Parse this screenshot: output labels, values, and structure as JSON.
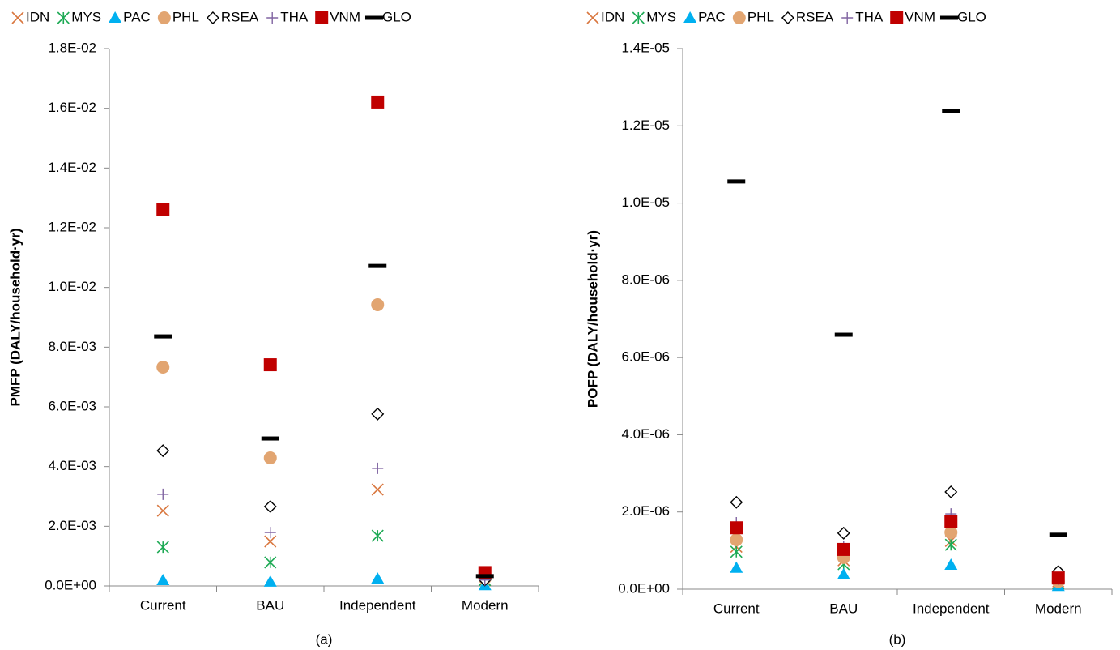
{
  "chart_data": [
    {
      "type": "scatter",
      "caption": "(a)",
      "y_label": "PMFP (DALY/household·yr)",
      "categories": [
        "Current",
        "BAU",
        "Independent",
        "Modern"
      ],
      "ylim": [
        0,
        0.018
      ],
      "yticks": [
        {
          "value": 0,
          "label": "0.0E+00"
        },
        {
          "value": 0.002,
          "label": "2.0E-03"
        },
        {
          "value": 0.004,
          "label": "4.0E-03"
        },
        {
          "value": 0.006,
          "label": "6.0E-03"
        },
        {
          "value": 0.008,
          "label": "8.0E-03"
        },
        {
          "value": 0.01,
          "label": "1.0E-02"
        },
        {
          "value": 0.012,
          "label": "1.2E-02"
        },
        {
          "value": 0.014,
          "label": "1.4E-02"
        },
        {
          "value": 0.016,
          "label": "1.6E-02"
        },
        {
          "value": 0.018,
          "label": "1.8E-02"
        }
      ],
      "series": [
        {
          "name": "IDN",
          "color": "#d9773f",
          "marker": "x",
          "values": [
            0.00252,
            0.00149,
            0.00323,
            0.0002
          ]
        },
        {
          "name": "MYS",
          "color": "#1eaa55",
          "marker": "asterisk",
          "values": [
            0.0013,
            0.00079,
            0.00168,
            0.0002
          ]
        },
        {
          "name": "PAC",
          "color": "#00b0f0",
          "marker": "triangle",
          "values": [
            0.00019,
            0.00014,
            0.00024,
            2e-05
          ]
        },
        {
          "name": "PHL",
          "color": "#e2a571",
          "marker": "circle",
          "values": [
            0.00733,
            0.00429,
            0.00942,
            0.00025
          ]
        },
        {
          "name": "RSEA",
          "color": "#000000",
          "marker": "diamond",
          "values": [
            0.00453,
            0.00266,
            0.00576,
            0.0002
          ]
        },
        {
          "name": "THA",
          "color": "#8064a2",
          "marker": "plus",
          "values": [
            0.00307,
            0.00179,
            0.00394,
            0.0002
          ]
        },
        {
          "name": "VNM",
          "color": "#c00000",
          "marker": "square",
          "values": [
            0.01262,
            0.00741,
            0.01621,
            0.00045
          ]
        },
        {
          "name": "GLO",
          "color": "#000000",
          "marker": "dash",
          "values": [
            0.00836,
            0.00494,
            0.01072,
            0.00033
          ]
        }
      ]
    },
    {
      "type": "scatter",
      "caption": "(b)",
      "y_label": "POFP (DALY/household·yr)",
      "categories": [
        "Current",
        "BAU",
        "Independent",
        "Modern"
      ],
      "ylim": [
        0,
        1.4e-05
      ],
      "yticks": [
        {
          "value": 0,
          "label": "0.0E+00"
        },
        {
          "value": 2e-06,
          "label": "2.0E-06"
        },
        {
          "value": 4e-06,
          "label": "4.0E-06"
        },
        {
          "value": 6e-06,
          "label": "6.0E-06"
        },
        {
          "value": 8e-06,
          "label": "8.0E-06"
        },
        {
          "value": 1e-05,
          "label": "1.0E-05"
        },
        {
          "value": 1.2e-05,
          "label": "1.2E-05"
        },
        {
          "value": 1.4e-05,
          "label": "1.4E-05"
        }
      ],
      "series": [
        {
          "name": "IDN",
          "color": "#d9773f",
          "marker": "x",
          "values": [
            1.1e-06,
            7.5e-07,
            1.25e-06,
            2e-07
          ]
        },
        {
          "name": "MYS",
          "color": "#1eaa55",
          "marker": "asterisk",
          "values": [
            9.7e-07,
            6.5e-07,
            1.15e-06,
            1.5e-07
          ]
        },
        {
          "name": "PAC",
          "color": "#00b0f0",
          "marker": "triangle",
          "values": [
            5.5e-07,
            3.8e-07,
            6.3e-07,
            8e-08
          ]
        },
        {
          "name": "PHL",
          "color": "#e2a571",
          "marker": "circle",
          "values": [
            1.28e-06,
            8.2e-07,
            1.47e-06,
            2e-07
          ]
        },
        {
          "name": "RSEA",
          "color": "#000000",
          "marker": "diamond",
          "values": [
            2.25e-06,
            1.45e-06,
            2.52e-06,
            4.6e-07
          ]
        },
        {
          "name": "THA",
          "color": "#8064a2",
          "marker": "plus",
          "values": [
            1.72e-06,
            1.1e-06,
            1.95e-06,
            2.5e-07
          ]
        },
        {
          "name": "VNM",
          "color": "#c00000",
          "marker": "square",
          "values": [
            1.59e-06,
            1.03e-06,
            1.76e-06,
            2.9e-07
          ]
        },
        {
          "name": "GLO",
          "color": "#000000",
          "marker": "dash",
          "values": [
            1.056e-05,
            6.59e-06,
            1.238e-05,
            1.41e-06
          ]
        }
      ]
    }
  ]
}
